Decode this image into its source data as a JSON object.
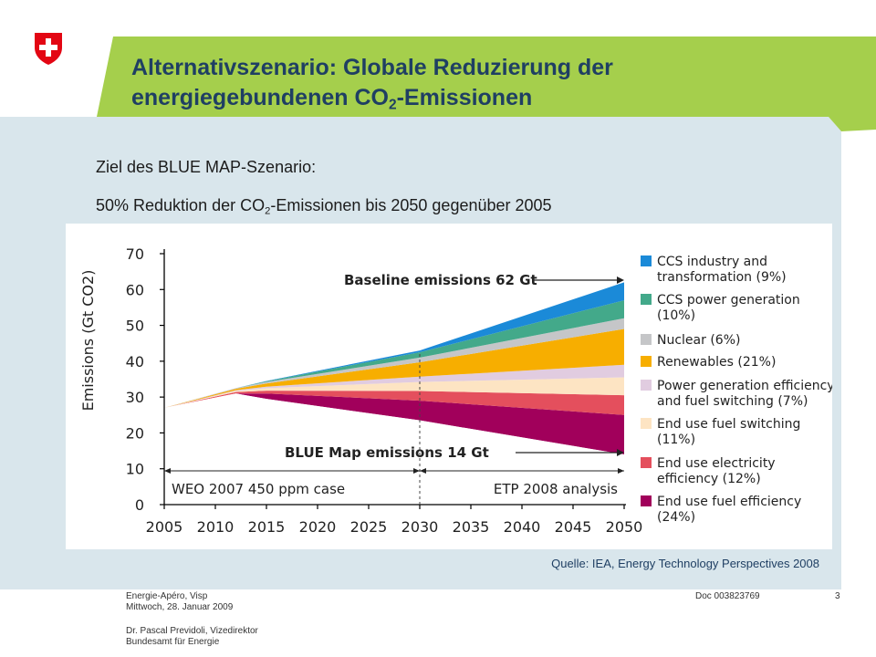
{
  "slide": {
    "title_line1": "Alternativszenario: Globale Reduzierung der",
    "title_line2_pre": "energiegebundenen CO",
    "title_line2_sub": "2",
    "title_line2_post": "-Emissionen",
    "subtitle1": "Ziel des BLUE MAP-Szenario:",
    "subtitle2_pre": "50% Reduktion der CO",
    "subtitle2_sub": "2",
    "subtitle2_post": "-Emissionen bis 2050 gegenüber 2005",
    "source": "Quelle: IEA, Energy Technology Perspectives 2008",
    "colors": {
      "header_green": "#a5cf4c",
      "panel": "#d9e6ec",
      "title": "#1f3f63"
    }
  },
  "footer": {
    "event": "Energie-Apéro, Visp",
    "date": "Mittwoch, 28. Januar 2009",
    "author": "Dr. Pascal Previdoli, Vizedirektor",
    "org": "Bundesamt für Energie",
    "doc": "Doc 003823769",
    "page": "3"
  },
  "chart_data": {
    "type": "area",
    "ylabel": "Emissions (Gt CO2)",
    "ylim": [
      0,
      70
    ],
    "yticks": [
      "0",
      "10",
      "20",
      "30",
      "40",
      "50",
      "60",
      "70"
    ],
    "xlim": [
      2005,
      2050
    ],
    "xticks": [
      "2005",
      "2010",
      "2015",
      "2020",
      "2025",
      "2030",
      "2035",
      "2040",
      "2045",
      "2050"
    ],
    "x": [
      2005,
      2012,
      2015,
      2030,
      2050
    ],
    "baseline_values": [
      27,
      32.5,
      34,
      42,
      62
    ],
    "blue_map_values": [
      27,
      31,
      29.5,
      23.5,
      14
    ],
    "series": [
      {
        "name": "End use fuel efficiency (24%)",
        "color": "#a1005b",
        "values": [
          0,
          0,
          1.5,
          5.5,
          11
        ]
      },
      {
        "name": "End use electricity efficiency (12%)",
        "color": "#e44f5d",
        "values": [
          0,
          0.4,
          0.8,
          2.7,
          5.5
        ]
      },
      {
        "name": "End use fuel switching (11%)",
        "color": "#fde4c3",
        "values": [
          0,
          0.3,
          0.7,
          2.5,
          5
        ]
      },
      {
        "name": "Power generation efficiency and fuel switching (7%)",
        "color": "#e1cce0",
        "values": [
          0,
          0.2,
          0.4,
          1.5,
          3.5
        ]
      },
      {
        "name": "Renewables (21%)",
        "color": "#f7ae00",
        "values": [
          0,
          0.4,
          0.9,
          4,
          10
        ]
      },
      {
        "name": "Nuclear (6%)",
        "color": "#c5c6c8",
        "values": [
          0,
          0.2,
          0.4,
          1.3,
          3
        ]
      },
      {
        "name": "CCS power generation (10%)",
        "color": "#43a98a",
        "values": [
          0,
          0,
          0.2,
          1.5,
          5
        ]
      },
      {
        "name": "CCS industry and transformation (9%)",
        "color": "#1b8ad8",
        "values": [
          0,
          0,
          0.1,
          0.5,
          5
        ]
      }
    ],
    "legend": [
      {
        "color": "#1b8ad8",
        "lines": [
          "CCS industry and",
          "transformation (9%)"
        ]
      },
      {
        "color": "#43a98a",
        "lines": [
          "CCS power generation",
          "(10%)"
        ]
      },
      {
        "color": "#c5c6c8",
        "lines": [
          "Nuclear (6%)"
        ]
      },
      {
        "color": "#f7ae00",
        "lines": [
          "Renewables (21%)"
        ]
      },
      {
        "color": "#e1cce0",
        "lines": [
          "Power generation efficiency",
          "and fuel switching (7%)"
        ]
      },
      {
        "color": "#fde4c3",
        "lines": [
          "End use fuel switching",
          "(11%)"
        ]
      },
      {
        "color": "#e44f5d",
        "lines": [
          "End use electricity",
          "efficiency (12%)"
        ]
      },
      {
        "color": "#a1005b",
        "lines": [
          "End use fuel efficiency",
          "(24%)"
        ]
      }
    ],
    "annotations": {
      "baseline": "Baseline emissions 62 Gt",
      "bluemap": "BLUE Map emissions 14 Gt",
      "weo": "WEO 2007 450 ppm case",
      "etp": "ETP 2008 analysis",
      "split_year": 2030
    }
  }
}
